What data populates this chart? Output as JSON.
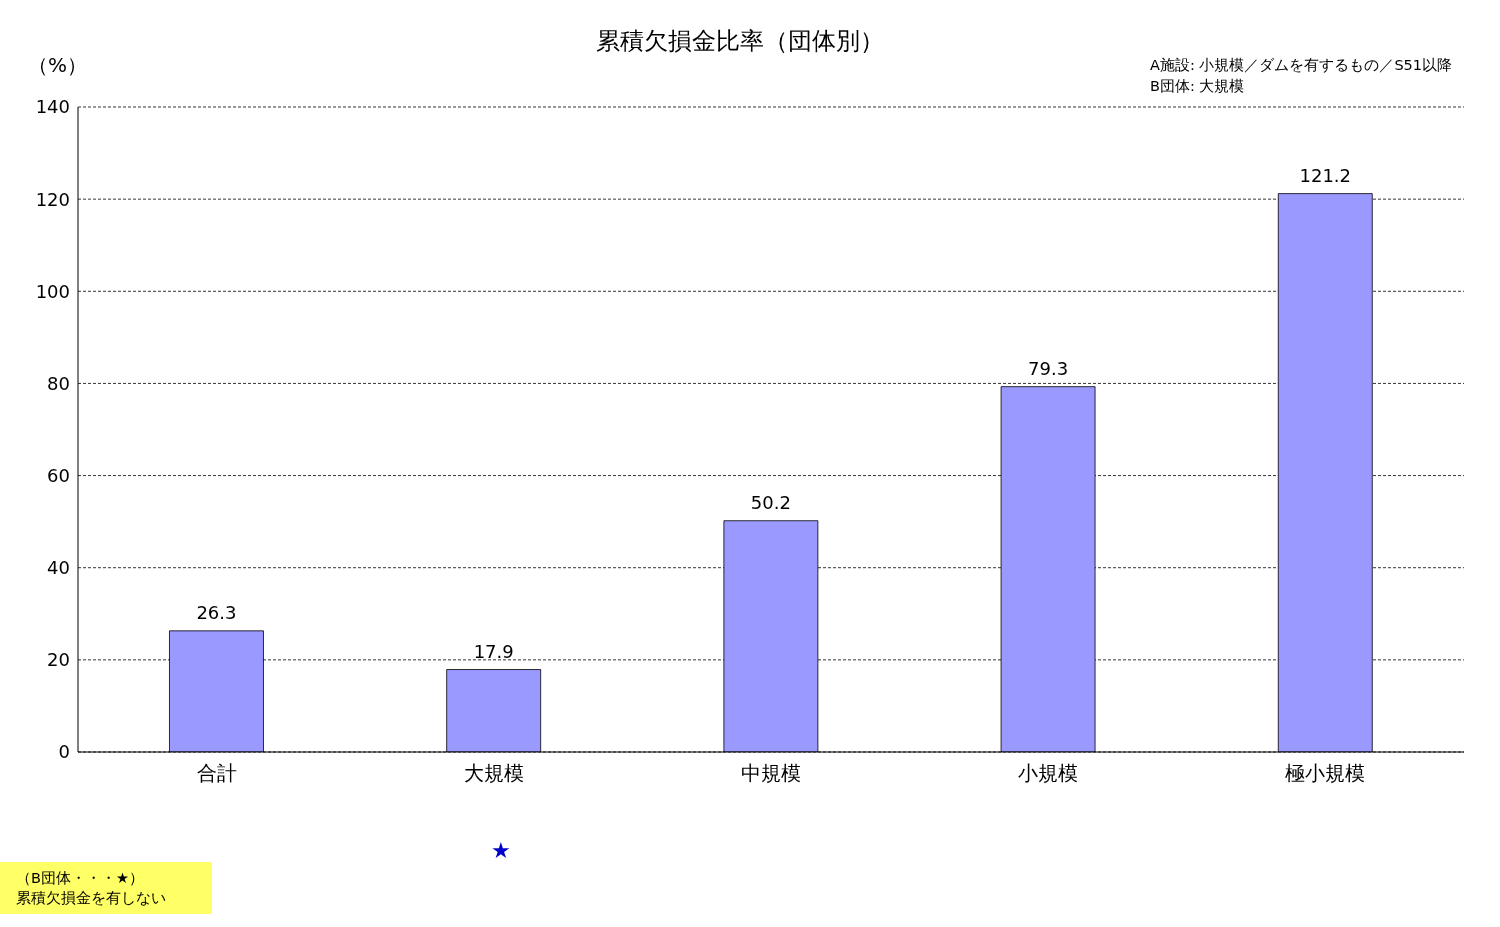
{
  "chart_data": {
    "type": "bar",
    "title": "累積欠損金比率（団体別）",
    "ylabel": "（%）",
    "categories": [
      "合計",
      "大規模",
      "中規模",
      "小規模",
      "極小規模"
    ],
    "values": [
      26.3,
      17.9,
      50.2,
      79.3,
      121.2
    ],
    "color": "#9999ff",
    "ylim": [
      0,
      140
    ],
    "yticks": [
      0,
      20,
      40,
      60,
      80,
      100,
      120,
      140
    ],
    "grid": "y",
    "data_labels": true,
    "annotations": [
      "A施設: 小規模／ダムを有するもの／S51以降",
      "B団体: 大規模",
      "（B団体・・・★）",
      "累積欠損金を有しない",
      "★"
    ]
  }
}
